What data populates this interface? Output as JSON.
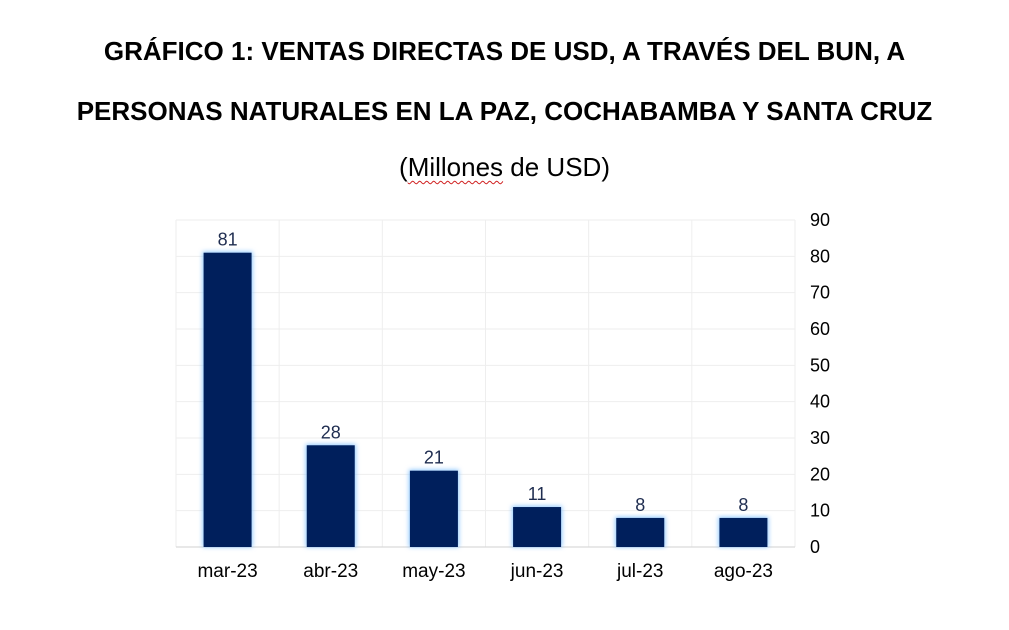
{
  "title_line1": "GRÁFICO 1: VENTAS DIRECTAS DE USD, A TRAVÉS DEL BUN, A",
  "title_line2": "PERSONAS NATURALES EN LA PAZ, COCHABAMBA Y SANTA CRUZ",
  "subtitle_open": "(",
  "subtitle_word": "Millones",
  "subtitle_rest": " de USD)",
  "chart_data": {
    "type": "bar",
    "categories": [
      "mar-23",
      "abr-23",
      "may-23",
      "jun-23",
      "jul-23",
      "ago-23"
    ],
    "values": [
      81,
      28,
      21,
      11,
      8,
      8
    ],
    "ylim": [
      0,
      90
    ],
    "yticks": [
      0,
      10,
      20,
      30,
      40,
      50,
      60,
      70,
      80,
      90
    ],
    "yaxis_side": "right",
    "grid": true,
    "data_labels": true,
    "bar_color": "#001f5c",
    "bar_glow_color": "#8ec8ff",
    "label_color": "#1f2d50"
  }
}
